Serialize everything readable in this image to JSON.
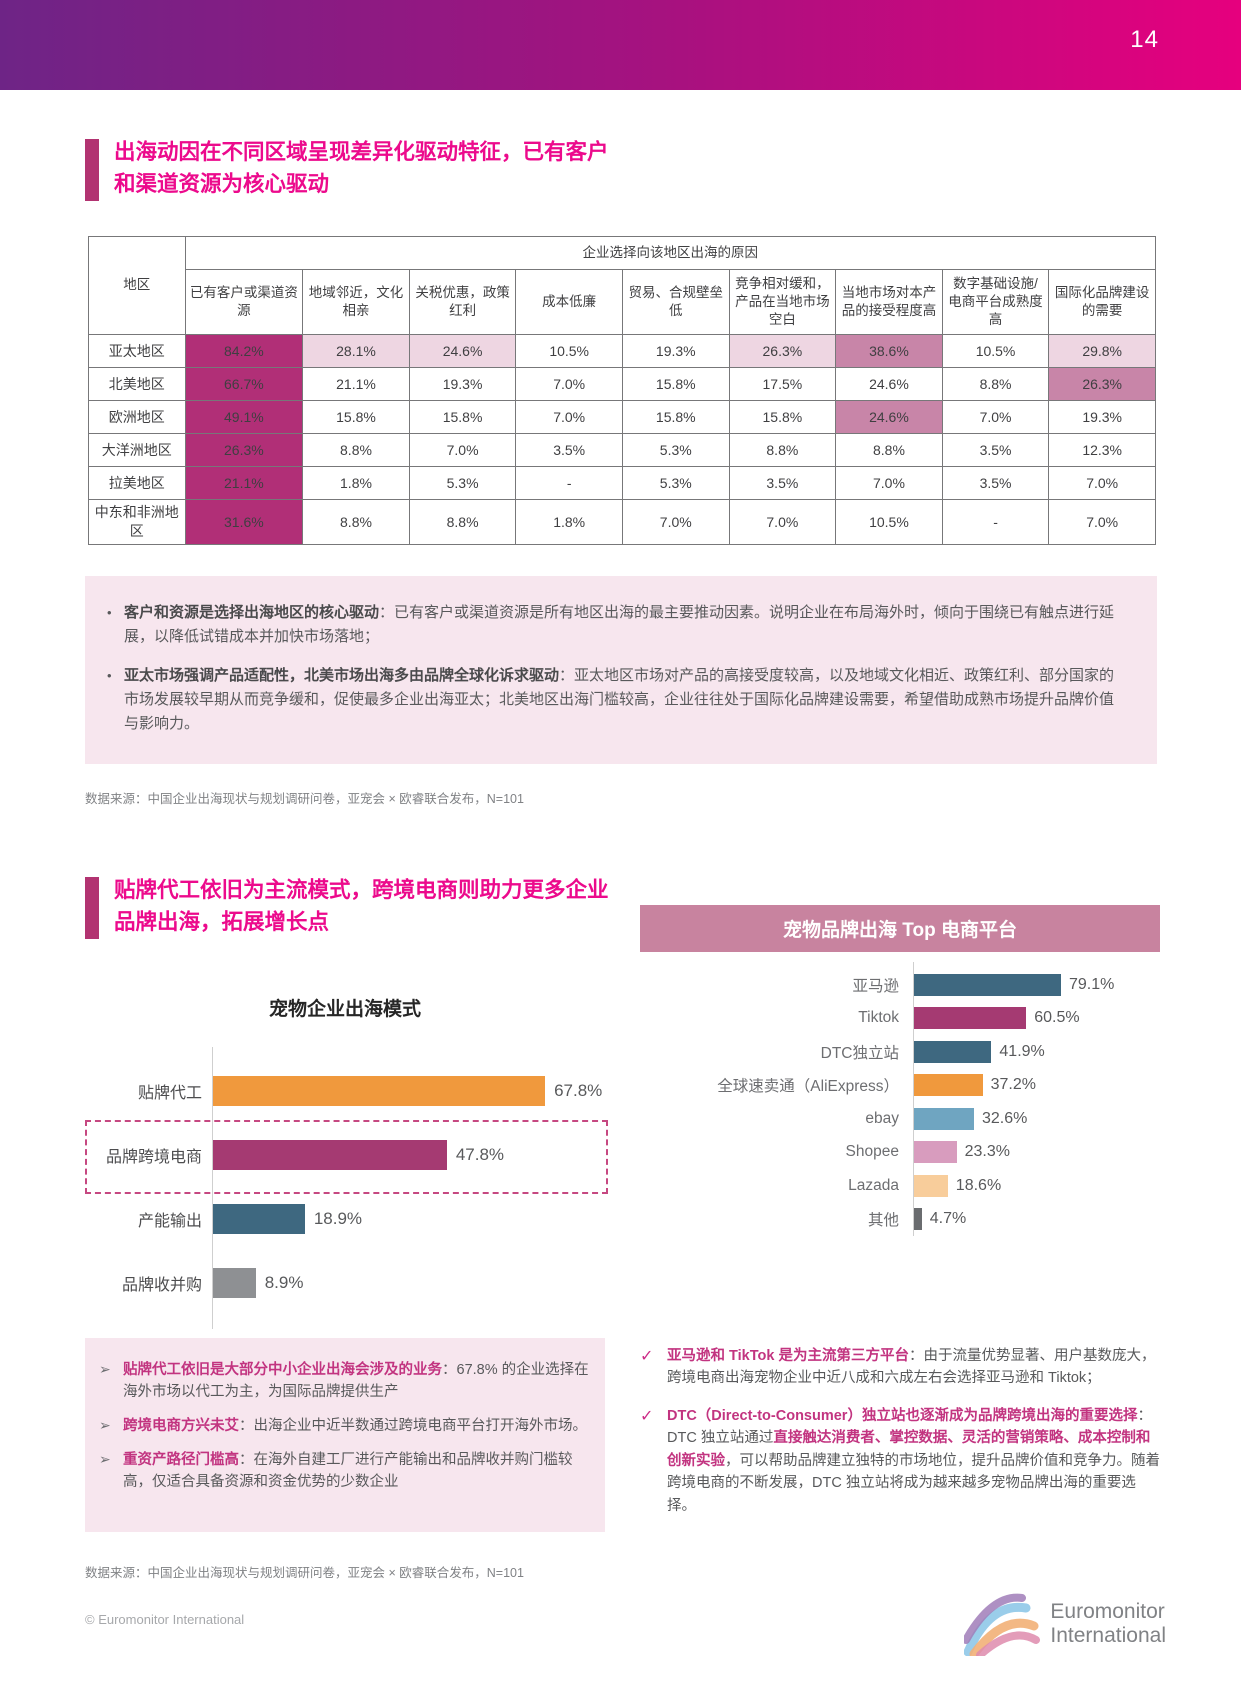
{
  "page": {
    "number": "14",
    "copyright": "© Euromonitor International",
    "logo_line1": "Euromonitor",
    "logo_line2": "International"
  },
  "markers": {
    "bullet": "•",
    "arrow": "➢",
    "check": "✓"
  },
  "theme": {
    "header_gradient_start": "#6E2486",
    "header_gradient_end": "#E6007E",
    "title_pink": "#EC0A8C",
    "accent_bar": "#B23371",
    "cell_dark": "#B12F77",
    "cell_medium": "#C885A8",
    "cell_light": "#EED6E2",
    "panel_pink": "#F7E6EE",
    "band_mauve": "#C8839F"
  },
  "section1": {
    "title_line1": "出海动因在不同区域呈现差异化驱动特征，已有客户",
    "title_line2": "和渠道资源为核心驱动",
    "insights": [
      {
        "lead": "客户和资源是选择出海地区的核心驱动",
        "rest": "：已有客户或渠道资源是所有地区出海的最主要推动因素。说明企业在布局海外时，倾向于围绕已有触点进行延展，以降低试错成本并加快市场落地；"
      },
      {
        "lead": "亚太市场强调产品适配性，北美市场出海多由品牌全球化诉求驱动",
        "rest": "：亚太地区市场对产品的高接受度较高，以及地域文化相近、政策红利、部分国家的市场发展较早期从而竞争缓和，促使最多企业出海亚太；北美地区出海门槛较高，企业往往处于国际化品牌建设需要，希望借助成熟市场提升品牌价值与影响力。"
      }
    ],
    "source": "数据来源：中国企业出海现状与规划调研问卷，亚宠会 × 欧睿联合发布，N=101"
  },
  "table": {
    "region_header": "地区",
    "group_header": "企业选择向该地区出海的原因",
    "columns": [
      "已有客户或渠道资源",
      "地域邻近，文化相亲",
      "关税优惠，政策红利",
      "成本低廉",
      "贸易、合规壁垒低",
      "竞争相对缓和，产品在当地市场空白",
      "当地市场对本产品的接受程度高",
      "数字基础设施/电商平台成熟度高",
      "国际化品牌建设的需要"
    ],
    "rows": [
      {
        "region": "亚太地区",
        "values": [
          "84.2%",
          "28.1%",
          "24.6%",
          "10.5%",
          "19.3%",
          "26.3%",
          "38.6%",
          "10.5%",
          "29.8%"
        ]
      },
      {
        "region": "北美地区",
        "values": [
          "66.7%",
          "21.1%",
          "19.3%",
          "7.0%",
          "15.8%",
          "17.5%",
          "24.6%",
          "8.8%",
          "26.3%"
        ]
      },
      {
        "region": "欧洲地区",
        "values": [
          "49.1%",
          "15.8%",
          "15.8%",
          "7.0%",
          "15.8%",
          "15.8%",
          "24.6%",
          "7.0%",
          "19.3%"
        ]
      },
      {
        "region": "大洋洲地区",
        "values": [
          "26.3%",
          "8.8%",
          "7.0%",
          "3.5%",
          "5.3%",
          "8.8%",
          "8.8%",
          "3.5%",
          "12.3%"
        ]
      },
      {
        "region": "拉美地区",
        "values": [
          "21.1%",
          "1.8%",
          "5.3%",
          "-",
          "5.3%",
          "3.5%",
          "7.0%",
          "3.5%",
          "7.0%"
        ]
      },
      {
        "region": "中东和非洲地区",
        "values": [
          "31.6%",
          "8.8%",
          "8.8%",
          "1.8%",
          "7.0%",
          "7.0%",
          "10.5%",
          "-",
          "7.0%"
        ]
      }
    ]
  },
  "section2": {
    "title_line1": "贴牌代工依旧为主流模式，跨境电商则助力更多企业",
    "title_line2": "品牌出海，拓展增长点",
    "source": "数据来源：中国企业出海现状与规划调研问卷，亚宠会 × 欧睿联合发布，N=101",
    "insights_left": [
      {
        "lead": "贴牌代工依旧是大部分中小企业出海会涉及的业务",
        "rest": "：67.8% 的企业选择在海外市场以代工为主，为国际品牌提供生产"
      },
      {
        "lead": "跨境电商方兴未艾",
        "rest": "：出海企业中近半数通过跨境电商平台打开海外市场。"
      },
      {
        "lead": "重资产路径门槛高",
        "rest": "：在海外自建工厂进行产能输出和品牌收并购门槛较高，仅适合具备资源和资金优势的少数企业"
      }
    ],
    "insights_right": [
      {
        "lead": "亚马逊和 TikTok 是为主流第三方平台",
        "t1": "：由于流量优势显著、用户基数庞大，跨境电商出海宠物企业中近八成和六成左右会选择亚马逊和 Tiktok；",
        "em": "",
        "t2": ""
      },
      {
        "lead": "DTC（Direct-to-Consumer）独立站也逐渐成为品牌跨境出海的重要选择",
        "t1": "：DTC 独立站通过",
        "em": "直接触达消费者、掌控数据、灵活的营销策略、成本控制和创新实验",
        "t2": "，可以帮助品牌建立独特的市场地位，提升品牌价值和竞争力。随着跨境电商的不断发展，DTC 独立站将成为越来越多宠物品牌出海的重要选择。"
      }
    ]
  },
  "chart_data": [
    {
      "type": "bar",
      "orientation": "horizontal",
      "title": "宠物企业出海模式",
      "categories": [
        "贴牌代工",
        "品牌跨境电商",
        "产能输出",
        "品牌收并购"
      ],
      "values": [
        67.8,
        47.8,
        18.9,
        8.9
      ],
      "value_labels": [
        "67.8%",
        "47.8%",
        "18.9%",
        "8.9%"
      ],
      "bar_colors": [
        "#F0993D",
        "#A53A72",
        "#3E6880",
        "#8E9093"
      ],
      "highlighted_category": "品牌跨境电商",
      "xlim": [
        0,
        80
      ],
      "grid": false,
      "legend": "none"
    },
    {
      "type": "bar",
      "orientation": "horizontal",
      "title": "宠物品牌出海 Top 电商平台",
      "categories": [
        "亚马逊",
        "Tiktok",
        "DTC独立站",
        "全球速卖通（AliExpress）",
        "ebay",
        "Shopee",
        "Lazada",
        "其他"
      ],
      "values": [
        79.1,
        60.5,
        41.9,
        37.2,
        32.6,
        23.3,
        18.6,
        4.7
      ],
      "value_labels": [
        "79.1%",
        "60.5%",
        "41.9%",
        "37.2%",
        "32.6%",
        "23.3%",
        "18.6%",
        "4.7%"
      ],
      "bar_colors": [
        "#3E6880",
        "#A53A72",
        "#3E6880",
        "#F0993D",
        "#6FA5C1",
        "#D89CBE",
        "#F8CD9B",
        "#6A6C6F"
      ],
      "xlim": [
        0,
        100
      ],
      "grid": false,
      "legend": "none"
    }
  ]
}
